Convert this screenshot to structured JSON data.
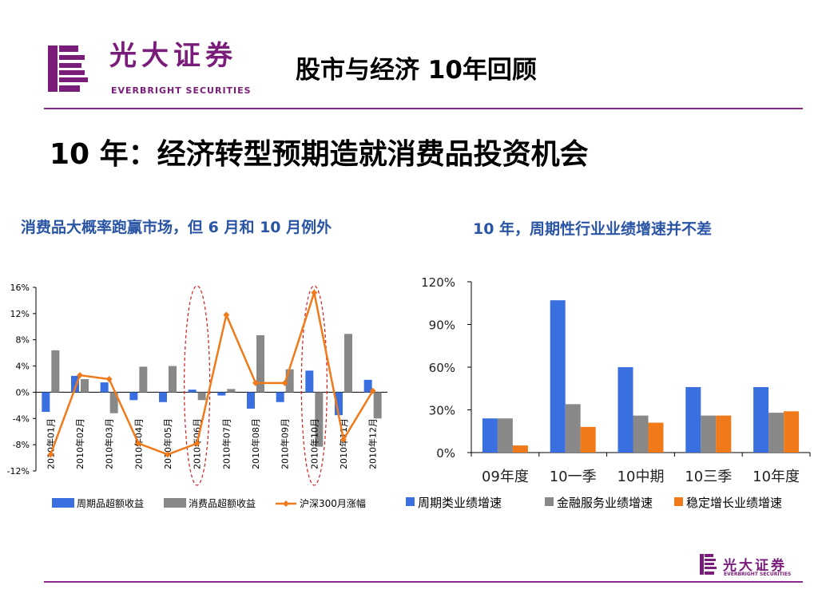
{
  "brand": {
    "name_cn": "光大证券",
    "name_en": "EVERBRIGHT SECURITIES",
    "color": "#7a1c7a"
  },
  "slide": {
    "title": "股市与经济 10年回顾",
    "subtitle": "10 年：经济转型预期造就消费品投资机会"
  },
  "charts": {
    "left_title": "消费品大概率跑赢市场，但 6 月和 10 月例外",
    "right_title": "10 年，周期性行业业绩增速并不差"
  },
  "chart_data": [
    {
      "type": "bar",
      "title": "消费品大概率跑赢市场，但 6 月和 10 月例外",
      "categories": [
        "2010年01月",
        "2010年02月",
        "2010年03月",
        "2010年04月",
        "2010年05月",
        "2010年06月",
        "2010年07月",
        "2010年08月",
        "2010年09月",
        "2010年10月",
        "2010年11月",
        "2010年12月"
      ],
      "ylim": [
        -12,
        16
      ],
      "yticks": [
        "16%",
        "12%",
        "8%",
        "4%",
        "0%",
        "-4%",
        "-8%",
        "-12%"
      ],
      "series": [
        {
          "name": "周期品超额收益",
          "type": "bar",
          "color": "#3a6fe0",
          "values": [
            -3.0,
            2.5,
            1.5,
            -1.2,
            -1.5,
            0.4,
            -0.5,
            -2.5,
            -1.5,
            3.3,
            -3.5,
            1.9
          ]
        },
        {
          "name": "消费品超额收益",
          "type": "bar",
          "color": "#888888",
          "values": [
            6.4,
            2.0,
            -3.2,
            3.9,
            4.0,
            -1.2,
            0.5,
            8.7,
            3.5,
            -8.3,
            8.9,
            -4.0
          ]
        },
        {
          "name": "沪深300月涨幅",
          "type": "line",
          "color": "#f07a1a",
          "values": [
            -9.5,
            2.6,
            2.0,
            -7.8,
            -9.5,
            -7.8,
            11.8,
            1.4,
            1.4,
            15.2,
            -7.2,
            0.2
          ]
        }
      ],
      "highlighted": [
        "2010年06月",
        "2010年10月"
      ],
      "legend": "bottom",
      "grid": false
    },
    {
      "type": "bar",
      "title": "10 年，周期性行业业绩增速并不差",
      "categories": [
        "09年度",
        "10一季",
        "10中期",
        "10三季",
        "10年度"
      ],
      "ylim": [
        0,
        120
      ],
      "yticks": [
        "120%",
        "90%",
        "60%",
        "30%",
        "0%"
      ],
      "series": [
        {
          "name": "周期类业绩增速",
          "color": "#3a6fe0",
          "values": [
            24,
            107,
            60,
            46,
            46
          ]
        },
        {
          "name": "金融服务业绩增速",
          "color": "#888888",
          "values": [
            24,
            34,
            26,
            26,
            28
          ]
        },
        {
          "name": "稳定增长业绩增速",
          "color": "#f07a1a",
          "values": [
            5,
            18,
            21,
            26,
            29
          ]
        }
      ],
      "legend": "bottom",
      "grid": false
    }
  ]
}
